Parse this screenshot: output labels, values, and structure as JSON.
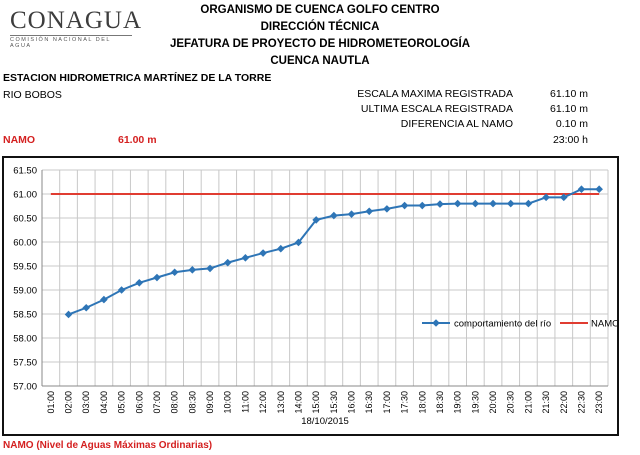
{
  "logo": {
    "text": "CONAGUA",
    "subtext": "COMISIÓN NACIONAL DEL AGUA"
  },
  "header": {
    "line1": "ORGANISMO DE CUENCA GOLFO CENTRO",
    "line2": "DIRECCIÓN TÉCNICA",
    "line3": "JEFATURA DE PROYECTO DE HIDROMETEOROLOGÍA",
    "line4": "CUENCA NAUTLA"
  },
  "station": {
    "name": "ESTACION HIDROMETRICA MARTÍNEZ DE LA TORRE",
    "river": "RIO BOBOS"
  },
  "stats": [
    {
      "label": "ESCALA MAXIMA REGISTRADA",
      "value": "61.10 m"
    },
    {
      "label": "ULTIMA ESCALA REGISTRADA",
      "value": "61.10 m"
    },
    {
      "label": "DIFERENCIA AL NAMO",
      "value": "0.10 m"
    },
    {
      "label": "",
      "value": "23:00 h"
    }
  ],
  "namo": {
    "label": "NAMO",
    "value": "61.00 m"
  },
  "footer": "NAMO (Nivel de Aguas Máximas Ordinarias)",
  "colors": {
    "river_series": "#2e75b6",
    "namo_series": "#e03c31",
    "accent_red": "#d42020"
  },
  "chart_data": {
    "type": "line",
    "xlabel": "18/10/2015",
    "ylabel": "",
    "ylim": [
      57.0,
      61.5
    ],
    "yticks": [
      "57.00",
      "57.50",
      "58.00",
      "58.50",
      "59.00",
      "59.50",
      "60.00",
      "60.50",
      "61.00",
      "61.50"
    ],
    "grid": true,
    "legend": "inside-bottom-right",
    "categories": [
      "01:00",
      "02:00",
      "03:00",
      "04:00",
      "05:00",
      "06:00",
      "07:00",
      "08:00",
      "08:30",
      "09:00",
      "10:00",
      "11:00",
      "12:00",
      "13:00",
      "14:00",
      "15:00",
      "15:30",
      "16:00",
      "16:30",
      "17:00",
      "17:30",
      "18:00",
      "18:30",
      "19:00",
      "19:30",
      "20:00",
      "20:30",
      "21:00",
      "21:30",
      "22:00",
      "22:30",
      "23:00"
    ],
    "series": [
      {
        "name": "comportamiento del río",
        "marker": "diamond",
        "values": [
          null,
          58.49,
          58.63,
          58.8,
          59.0,
          59.15,
          59.26,
          59.37,
          59.42,
          59.45,
          59.57,
          59.67,
          59.77,
          59.86,
          59.99,
          60.46,
          60.55,
          60.58,
          60.64,
          60.69,
          60.76,
          60.76,
          60.79,
          60.8,
          60.8,
          60.8,
          60.8,
          60.8,
          60.93,
          60.93,
          61.1,
          61.1
        ]
      },
      {
        "name": "NAMO",
        "marker": "none",
        "values": [
          61.0,
          61.0,
          61.0,
          61.0,
          61.0,
          61.0,
          61.0,
          61.0,
          61.0,
          61.0,
          61.0,
          61.0,
          61.0,
          61.0,
          61.0,
          61.0,
          61.0,
          61.0,
          61.0,
          61.0,
          61.0,
          61.0,
          61.0,
          61.0,
          61.0,
          61.0,
          61.0,
          61.0,
          61.0,
          61.0,
          61.0,
          61.0
        ]
      }
    ]
  }
}
